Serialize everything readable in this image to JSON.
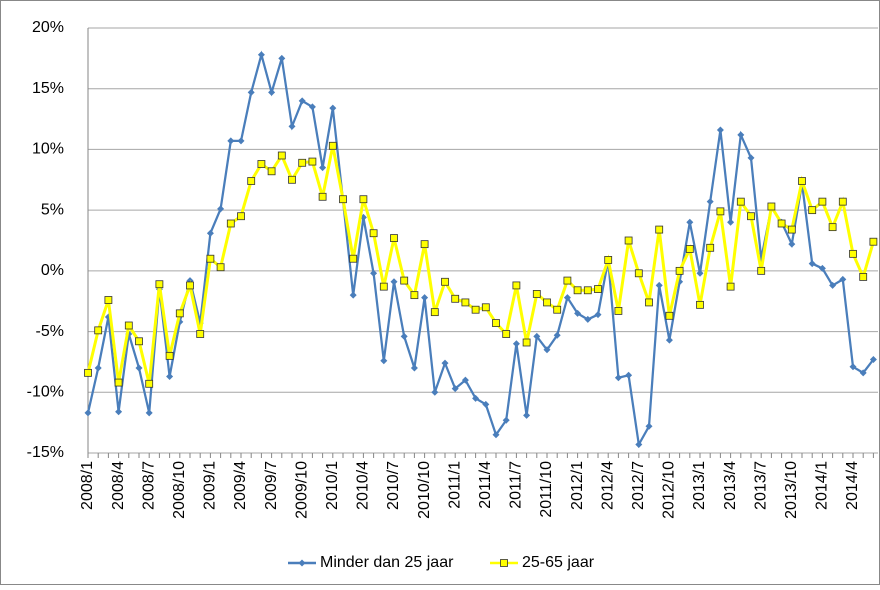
{
  "chart_data": {
    "type": "line",
    "categories": [
      "2008/1",
      null,
      null,
      "2008/4",
      null,
      null,
      "2008/7",
      null,
      null,
      "2008/10",
      null,
      null,
      "2009/1",
      null,
      null,
      "2009/4",
      null,
      null,
      "2009/7",
      null,
      null,
      "2009/10",
      null,
      null,
      "2010/1",
      null,
      null,
      "2010/4",
      null,
      null,
      "2010/7",
      null,
      null,
      "2010/10",
      null,
      null,
      "2011/1",
      null,
      null,
      "2011/4",
      null,
      null,
      "2011/7",
      null,
      null,
      "2011/10",
      null,
      null,
      "2012/1",
      null,
      null,
      "2012/4",
      null,
      null,
      "2012/7",
      null,
      null,
      "2012/10",
      null,
      null,
      "2013/1",
      null,
      null,
      "2013/4",
      null,
      null,
      "2013/7",
      null,
      null,
      "2013/10",
      null,
      null,
      "2014/1",
      null,
      null,
      "2014/4",
      null,
      null
    ],
    "series": [
      {
        "name": "Minder dan 25 jaar",
        "color": "#4a7ebb",
        "values": [
          -11.7,
          -8.0,
          -3.8,
          -11.6,
          -5.2,
          -8.0,
          -11.7,
          -1.5,
          -8.7,
          -4.2,
          -0.8,
          -4.3,
          3.1,
          5.1,
          10.7,
          10.7,
          14.7,
          17.8,
          14.7,
          17.5,
          11.9,
          14.0,
          13.5,
          8.5,
          13.4,
          5.8,
          -2.0,
          4.4,
          -0.2,
          -7.4,
          -0.9,
          -5.4,
          -8.0,
          -2.2,
          -10.0,
          -7.6,
          -9.7,
          -9.0,
          -10.5,
          -11.0,
          -13.5,
          -12.3,
          -6.0,
          -11.9,
          -5.4,
          -6.5,
          -5.3,
          -2.2,
          -3.5,
          -4.0,
          -3.6,
          0.9,
          -8.8,
          -8.6,
          -14.3,
          -12.8,
          -1.2,
          -5.7,
          -0.9,
          4.0,
          -0.2,
          5.7,
          11.6,
          4.0,
          11.2,
          9.3,
          1.0,
          5.2,
          4.0,
          2.2,
          7.2,
          0.6,
          0.2,
          -1.2,
          -0.7,
          -7.9,
          -8.4,
          -7.3
        ]
      },
      {
        "name": "25-65 jaar",
        "color": "#ffff00",
        "values": [
          -8.4,
          -4.9,
          -2.4,
          -9.2,
          -4.5,
          -5.8,
          -9.3,
          -1.1,
          -7.0,
          -3.5,
          -1.2,
          -5.2,
          1.0,
          0.3,
          3.9,
          4.5,
          7.4,
          8.8,
          8.2,
          9.5,
          7.5,
          8.9,
          9.0,
          6.1,
          10.3,
          5.9,
          1.0,
          5.9,
          3.1,
          -1.3,
          2.7,
          -0.8,
          -2.0,
          2.2,
          -3.4,
          -0.9,
          -2.3,
          -2.6,
          -3.2,
          -3.0,
          -4.3,
          -5.2,
          -1.2,
          -5.9,
          -1.9,
          -2.6,
          -3.2,
          -0.8,
          -1.6,
          -1.6,
          -1.5,
          0.9,
          -3.3,
          2.5,
          -0.2,
          -2.6,
          3.4,
          -3.7,
          0.0,
          1.8,
          -2.8,
          1.9,
          4.9,
          -1.3,
          5.7,
          4.5,
          0.0,
          5.3,
          3.9,
          3.4,
          7.4,
          5.0,
          5.7,
          3.6,
          5.7,
          1.4,
          -0.5,
          2.4
        ]
      }
    ],
    "ylim": [
      -15,
      20
    ],
    "yticks": [
      {
        "value": -15,
        "label": "-15%"
      },
      {
        "value": -10,
        "label": "-10%"
      },
      {
        "value": -5,
        "label": "-5%"
      },
      {
        "value": 0,
        "label": "0%"
      },
      {
        "value": 5,
        "label": "5%"
      },
      {
        "value": 10,
        "label": "10%"
      },
      {
        "value": 15,
        "label": "15%"
      },
      {
        "value": 20,
        "label": "20%"
      }
    ],
    "grid": true
  }
}
